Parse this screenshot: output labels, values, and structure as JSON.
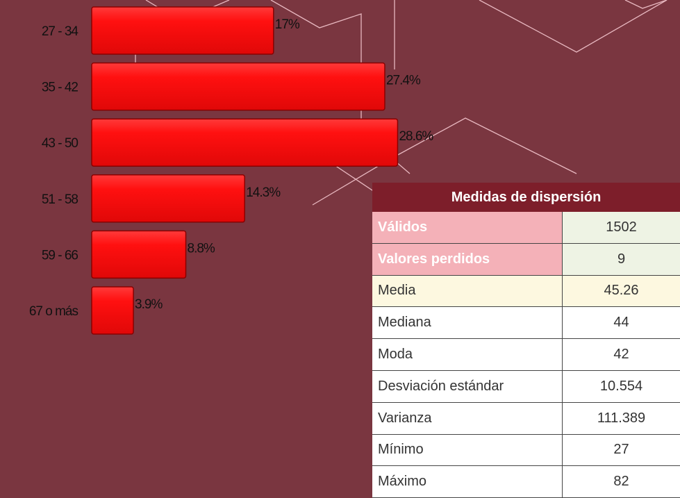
{
  "chart_data": {
    "type": "bar",
    "orientation": "horizontal",
    "categories": [
      "27 - 34",
      "35 - 42",
      "43 - 50",
      "51 - 58",
      "59 - 66",
      "67 o más"
    ],
    "values": [
      17,
      27.4,
      28.6,
      14.3,
      8.8,
      3.9
    ],
    "value_labels": [
      "17%",
      "27.4%",
      "28.6%",
      "14.3%",
      "8.8%",
      "3.9%"
    ],
    "color": "#ff1010"
  },
  "table": {
    "title": "Medidas de dispersión",
    "rows": [
      [
        "Válidos",
        1502
      ],
      [
        "Valores perdidos",
        9
      ],
      [
        "Media",
        45.26
      ],
      [
        "Mediana",
        44
      ],
      [
        "Moda",
        42
      ],
      [
        "Desviación estándar",
        10.554
      ],
      [
        "Varianza",
        111.389
      ],
      [
        "Mínimo",
        27
      ],
      [
        "Máximo",
        82
      ]
    ]
  }
}
